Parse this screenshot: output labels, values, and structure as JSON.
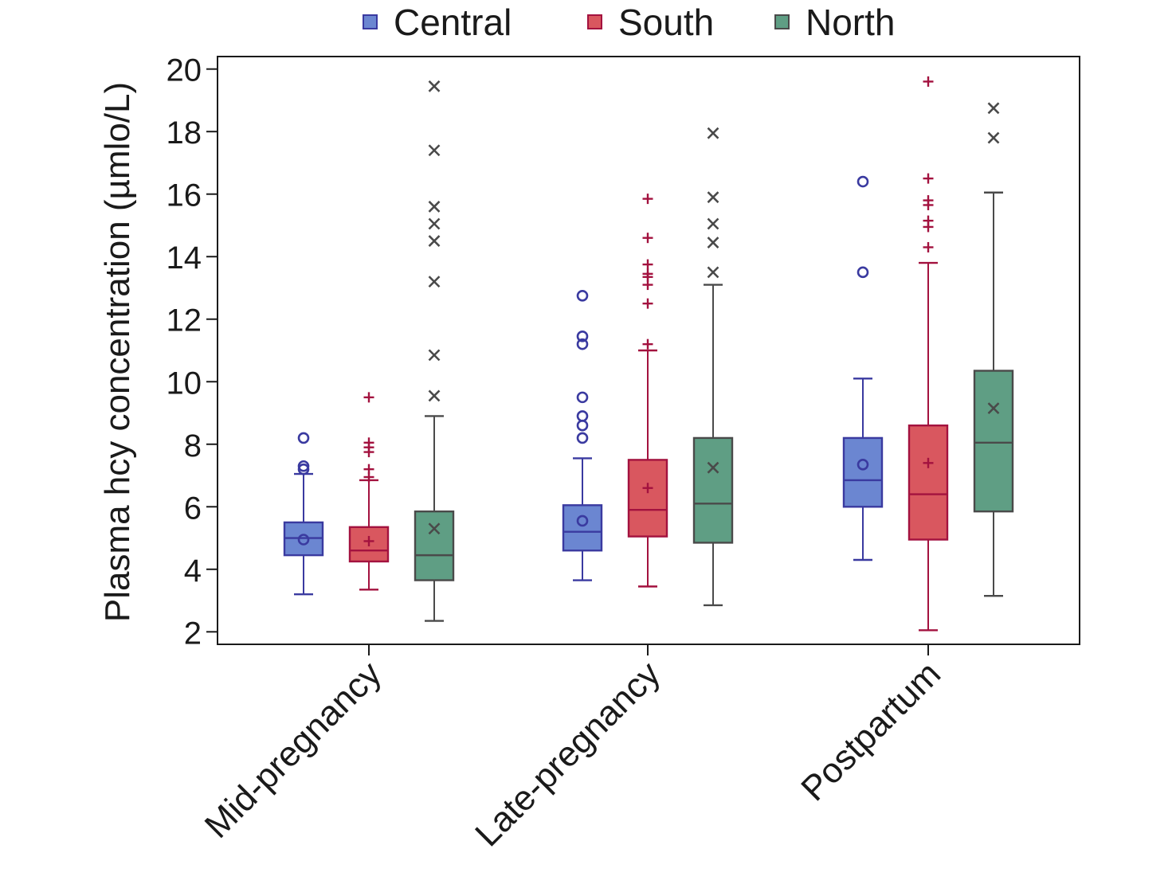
{
  "chart_data": {
    "type": "boxplot",
    "ylabel": "Plasma hcy concentration (µmlo/L)",
    "xlabel": "",
    "ylim": [
      1.6,
      20.4
    ],
    "yticks": [
      "2",
      "4",
      "6",
      "8",
      "10",
      "12",
      "14",
      "16",
      "18",
      "20"
    ],
    "categories": [
      "Mid-pregnancy",
      "Late-pregnancy",
      "Postpartum"
    ],
    "legend_position": "top",
    "grid": false,
    "series": [
      {
        "name": "Central",
        "fill": "#6b86d1",
        "stroke": "#3a3aa0",
        "mean_marker": "circle",
        "boxes": [
          {
            "whisker_low": 3.2,
            "q1": 4.45,
            "median": 5.0,
            "q3": 5.5,
            "whisker_high": 7.05,
            "mean": 4.95,
            "outliers": [
              7.2,
              7.3,
              8.2
            ]
          },
          {
            "whisker_low": 3.65,
            "q1": 4.6,
            "median": 5.2,
            "q3": 6.05,
            "whisker_high": 7.55,
            "mean": 5.55,
            "outliers": [
              8.2,
              8.6,
              8.9,
              9.5,
              11.2,
              11.45,
              12.75
            ]
          },
          {
            "whisker_low": 4.3,
            "q1": 6.0,
            "median": 6.85,
            "q3": 8.2,
            "whisker_high": 10.1,
            "mean": 7.35,
            "outliers": [
              13.5,
              16.4
            ]
          }
        ]
      },
      {
        "name": "South",
        "fill": "#d9575f",
        "stroke": "#a3123f",
        "mean_marker": "plus",
        "boxes": [
          {
            "whisker_low": 3.35,
            "q1": 4.25,
            "median": 4.6,
            "q3": 5.35,
            "whisker_high": 6.85,
            "mean": 4.9,
            "outliers": [
              6.95,
              7.2,
              7.75,
              7.9,
              8.05,
              9.5
            ]
          },
          {
            "whisker_low": 3.45,
            "q1": 5.05,
            "median": 5.9,
            "q3": 7.5,
            "whisker_high": 11.0,
            "mean": 6.6,
            "outliers": [
              11.2,
              12.5,
              13.1,
              13.35,
              13.45,
              13.75,
              14.6,
              15.85
            ]
          },
          {
            "whisker_low": 2.05,
            "q1": 4.95,
            "median": 6.4,
            "q3": 8.6,
            "whisker_high": 13.8,
            "mean": 7.4,
            "outliers": [
              14.3,
              14.95,
              15.15,
              15.65,
              15.8,
              16.5,
              19.6
            ]
          }
        ]
      },
      {
        "name": "North",
        "fill": "#5f9e84",
        "stroke": "#4a4a4a",
        "mean_marker": "x",
        "boxes": [
          {
            "whisker_low": 2.35,
            "q1": 3.65,
            "median": 4.45,
            "q3": 5.85,
            "whisker_high": 8.9,
            "mean": 5.3,
            "outliers": [
              9.55,
              10.85,
              13.2,
              14.5,
              15.05,
              15.6,
              17.4,
              19.45
            ]
          },
          {
            "whisker_low": 2.85,
            "q1": 4.85,
            "median": 6.1,
            "q3": 8.2,
            "whisker_high": 13.1,
            "mean": 7.25,
            "outliers": [
              13.5,
              14.45,
              15.05,
              15.9,
              17.95
            ]
          },
          {
            "whisker_low": 3.15,
            "q1": 5.85,
            "median": 8.05,
            "q3": 10.35,
            "whisker_high": 16.05,
            "mean": 9.15,
            "outliers": [
              17.8,
              18.75
            ]
          }
        ]
      }
    ]
  }
}
